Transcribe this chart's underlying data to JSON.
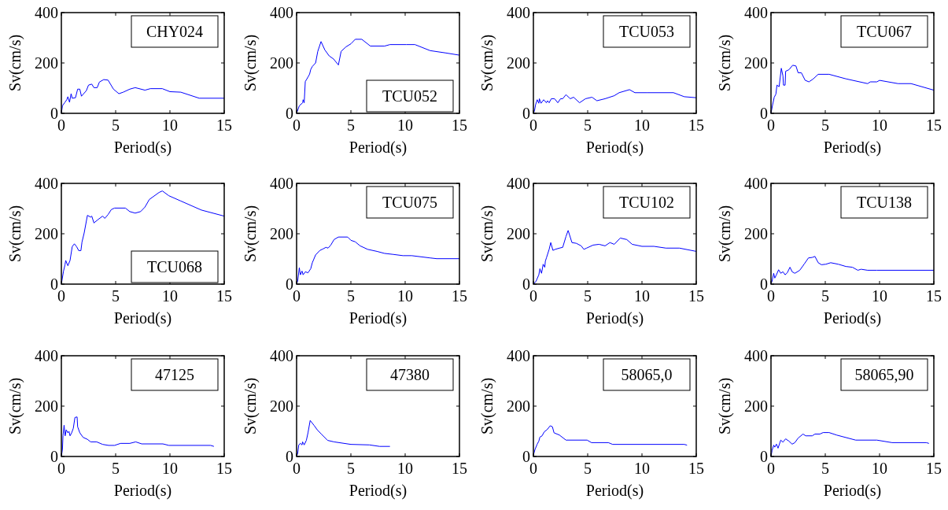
{
  "chart_data": [
    {
      "type": "line",
      "xlabel": "Period(s)",
      "ylabel": "Sv(cm/s)",
      "xlim": [
        0,
        15
      ],
      "ylim": [
        0,
        400
      ],
      "xticks": [
        0,
        5,
        10,
        15
      ],
      "yticks": [
        0,
        200,
        400
      ],
      "legend": "top right",
      "series": [
        {
          "name": "CHY024",
          "color": "#0000ff",
          "x": [
            0,
            0.1,
            0.3,
            0.5,
            0.6,
            0.75,
            0.9,
            1.0,
            1.3,
            1.5,
            1.7,
            1.85,
            2.3,
            2.5,
            2.8,
            3.0,
            3.3,
            3.5,
            3.9,
            4.3,
            4.8,
            5.3,
            5.7,
            6.3,
            6.8,
            7.7,
            8.2,
            9.3,
            10,
            11,
            12.7,
            15
          ],
          "values": [
            0,
            30,
            42,
            54,
            66,
            44,
            78,
            60,
            62,
            96,
            96,
            68,
            90,
            112,
            116,
            102,
            102,
            124,
            134,
            132,
            96,
            78,
            84,
            96,
            102,
            92,
            98,
            98,
            86,
            84,
            60,
            60
          ]
        }
      ]
    },
    {
      "type": "line",
      "xlabel": "Period(s)",
      "ylabel": "Sv(cm/s)",
      "xlim": [
        0,
        15
      ],
      "ylim": [
        0,
        400
      ],
      "xticks": [
        0,
        5,
        10,
        15
      ],
      "yticks": [
        0,
        200,
        400
      ],
      "legend": "bottom right",
      "series": [
        {
          "name": "TCU052",
          "color": "#0000ff",
          "x": [
            0,
            0.25,
            0.56,
            0.6,
            0.7,
            0.8,
            1.05,
            1.2,
            1.3,
            1.45,
            1.75,
            1.95,
            2.25,
            2.6,
            3.0,
            3.4,
            3.85,
            4.1,
            4.55,
            5.0,
            5.4,
            6.0,
            6.8,
            8.1,
            8.6,
            10.1,
            10.9,
            12.3,
            13.7,
            15
          ],
          "values": [
            0,
            30,
            42,
            54,
            42,
            126,
            144,
            156,
            174,
            186,
            200,
            246,
            285,
            252,
            228,
            216,
            192,
            246,
            264,
            276,
            294,
            294,
            267,
            267,
            273,
            273,
            273,
            249,
            240,
            231
          ]
        }
      ]
    },
    {
      "type": "line",
      "xlabel": "Period(s)",
      "ylabel": "Sv(cm/s)",
      "xlim": [
        0,
        15
      ],
      "ylim": [
        0,
        400
      ],
      "xticks": [
        0,
        5,
        10,
        15
      ],
      "yticks": [
        0,
        200,
        400
      ],
      "legend": "top right",
      "series": [
        {
          "name": "TCU053",
          "color": "#0000ff",
          "x": [
            0,
            0.1,
            0.2,
            0.35,
            0.5,
            0.55,
            0.7,
            0.95,
            1.2,
            1.3,
            1.45,
            1.65,
            1.95,
            2.25,
            2.5,
            2.7,
            3.0,
            3.4,
            3.7,
            4.25,
            4.8,
            5.4,
            5.85,
            6.6,
            7.45,
            7.9,
            8.85,
            9.35,
            10.5,
            12.9,
            13.9,
            15
          ],
          "values": [
            0,
            10,
            34,
            54,
            40,
            58,
            40,
            54,
            42,
            50,
            42,
            58,
            58,
            42,
            58,
            58,
            74,
            58,
            64,
            42,
            58,
            64,
            50,
            58,
            70,
            82,
            94,
            82,
            82,
            82,
            66,
            62
          ]
        }
      ]
    },
    {
      "type": "line",
      "xlabel": "Period(s)",
      "ylabel": "Sv(cm/s)",
      "xlim": [
        0,
        15
      ],
      "ylim": [
        0,
        400
      ],
      "xticks": [
        0,
        5,
        10,
        15
      ],
      "yticks": [
        0,
        200,
        400
      ],
      "legend": "top right",
      "series": [
        {
          "name": "TCU067",
          "color": "#0000ff",
          "x": [
            0,
            0.15,
            0.3,
            0.45,
            0.55,
            0.75,
            0.95,
            1.1,
            1.15,
            1.3,
            1.35,
            1.65,
            2.0,
            2.3,
            2.5,
            2.8,
            3.15,
            3.5,
            3.9,
            4.35,
            5.35,
            6.9,
            8.9,
            9.15,
            9.75,
            10.0,
            11.7,
            12.9,
            15
          ],
          "values": [
            0,
            34,
            64,
            76,
            112,
            106,
            179,
            149,
            112,
            112,
            167,
            173,
            191,
            188,
            161,
            161,
            131,
            125,
            137,
            155,
            155,
            137,
            118,
            125,
            125,
            131,
            118,
            118,
            92
          ]
        }
      ]
    },
    {
      "type": "line",
      "xlabel": "Period(s)",
      "ylabel": "Sv(cm/s)",
      "xlim": [
        0,
        15
      ],
      "ylim": [
        0,
        400
      ],
      "xticks": [
        0,
        5,
        10,
        15
      ],
      "yticks": [
        0,
        200,
        400
      ],
      "legend": "bottom right",
      "series": [
        {
          "name": "TCU068",
          "color": "#0000ff",
          "x": [
            0,
            0.2,
            0.33,
            0.4,
            0.6,
            0.8,
            1.0,
            1.2,
            1.4,
            1.6,
            1.8,
            1.9,
            2.1,
            2.4,
            2.7,
            2.8,
            3.0,
            3.4,
            3.8,
            4.0,
            4.3,
            4.6,
            4.9,
            5.9,
            6.3,
            6.8,
            7.3,
            7.7,
            8.1,
            9.0,
            9.3,
            9.9,
            11,
            12.9,
            15
          ],
          "values": [
            0,
            52,
            76,
            94,
            73,
            94,
            149,
            160,
            149,
            133,
            133,
            167,
            203,
            273,
            266,
            270,
            243,
            257,
            270,
            261,
            276,
            296,
            302,
            302,
            288,
            282,
            288,
            306,
            336,
            364,
            370,
            351,
            330,
            294,
            270
          ]
        }
      ]
    },
    {
      "type": "line",
      "xlabel": "Period(s)",
      "ylabel": "Sv(cm/s)",
      "xlim": [
        0,
        15
      ],
      "ylim": [
        0,
        400
      ],
      "xticks": [
        0,
        5,
        10,
        15
      ],
      "yticks": [
        0,
        200,
        400
      ],
      "legend": "top right",
      "series": [
        {
          "name": "TCU075",
          "color": "#0000ff",
          "x": [
            0,
            0.1,
            0.25,
            0.35,
            0.5,
            0.6,
            0.8,
            1.05,
            1.3,
            1.45,
            1.75,
            2.15,
            2.45,
            2.7,
            2.9,
            3.15,
            3.45,
            3.85,
            4.7,
            5.0,
            5.4,
            5.85,
            6.55,
            7.4,
            8.1,
            8.9,
            9.8,
            10.6,
            12.3,
            12.9,
            15
          ],
          "values": [
            0,
            12,
            65,
            37,
            52,
            37,
            49,
            45,
            61,
            85,
            116,
            134,
            140,
            146,
            143,
            155,
            177,
            187,
            187,
            174,
            168,
            152,
            138,
            130,
            122,
            118,
            113,
            113,
            104,
            101,
            101
          ]
        }
      ]
    },
    {
      "type": "line",
      "xlabel": "Period(s)",
      "ylabel": "Sv(cm/s)",
      "xlim": [
        0,
        15
      ],
      "ylim": [
        0,
        400
      ],
      "xticks": [
        0,
        5,
        10,
        15
      ],
      "yticks": [
        0,
        200,
        400
      ],
      "legend": "top right",
      "series": [
        {
          "name": "TCU102",
          "color": "#0000ff",
          "x": [
            0,
            0.25,
            0.5,
            0.6,
            0.75,
            0.9,
            1.05,
            1.1,
            1.2,
            1.45,
            1.6,
            1.8,
            2.0,
            2.4,
            2.7,
            3.0,
            3.2,
            3.55,
            3.95,
            4.4,
            4.65,
            4.9,
            5.5,
            6.05,
            6.6,
            7.05,
            7.45,
            8.0,
            8.6,
            9.1,
            10.0,
            11.1,
            12.2,
            13.45,
            15
          ],
          "values": [
            0,
            12,
            37,
            61,
            43,
            79,
            67,
            91,
            104,
            138,
            165,
            134,
            138,
            143,
            146,
            189,
            213,
            165,
            162,
            152,
            138,
            143,
            155,
            158,
            152,
            165,
            158,
            183,
            177,
            158,
            150,
            150,
            143,
            143,
            130
          ]
        }
      ]
    },
    {
      "type": "line",
      "xlabel": "Period(s)",
      "ylabel": "Sv(cm/s)",
      "xlim": [
        0,
        15
      ],
      "ylim": [
        0,
        400
      ],
      "xticks": [
        0,
        5,
        10,
        15
      ],
      "yticks": [
        0,
        200,
        400
      ],
      "legend": "top right",
      "series": [
        {
          "name": "TCU138",
          "color": "#0000ff",
          "x": [
            0,
            0.1,
            0.25,
            0.35,
            0.5,
            0.7,
            0.9,
            1.1,
            1.3,
            1.5,
            1.75,
            1.95,
            2.2,
            2.65,
            3.05,
            3.45,
            3.8,
            4.05,
            4.35,
            4.65,
            5.05,
            5.5,
            6.2,
            6.9,
            7.5,
            8.0,
            8.3,
            8.9,
            9.75,
            15
          ],
          "values": [
            0,
            12,
            43,
            24,
            37,
            57,
            43,
            49,
            37,
            45,
            67,
            49,
            43,
            55,
            79,
            104,
            106,
            110,
            85,
            77,
            79,
            85,
            79,
            70,
            67,
            55,
            59,
            55,
            55,
            55
          ]
        }
      ]
    },
    {
      "type": "line",
      "xlabel": "Period(s)",
      "ylabel": "Sv(cm/s)",
      "xlim": [
        0,
        15
      ],
      "ylim": [
        0,
        400
      ],
      "xticks": [
        0,
        5,
        10,
        15
      ],
      "yticks": [
        0,
        200,
        400
      ],
      "legend": "top right",
      "series": [
        {
          "name": "47125",
          "color": "#0000ff",
          "x": [
            0,
            0.1,
            0.15,
            0.25,
            0.35,
            0.45,
            0.6,
            0.7,
            0.8,
            0.95,
            1.1,
            1.25,
            1.45,
            1.5,
            1.7,
            2.0,
            2.4,
            2.7,
            3.25,
            3.8,
            4.35,
            4.9,
            5.45,
            6.3,
            6.85,
            7.4,
            9.35,
            9.9,
            13.75,
            14.05
          ],
          "values": [
            0,
            28,
            82,
            124,
            82,
            106,
            94,
            100,
            82,
            94,
            112,
            155,
            157,
            118,
            94,
            76,
            68,
            58,
            58,
            48,
            44,
            44,
            52,
            52,
            58,
            50,
            50,
            44,
            44,
            40
          ]
        }
      ]
    },
    {
      "type": "line",
      "xlabel": "Period(s)",
      "ylabel": "Sv(cm/s)",
      "xlim": [
        0,
        15
      ],
      "ylim": [
        0,
        400
      ],
      "xticks": [
        0,
        5,
        10,
        15
      ],
      "yticks": [
        0,
        200,
        400
      ],
      "legend": "top right",
      "series": [
        {
          "name": "47380",
          "color": "#0000ff",
          "x": [
            0,
            0.1,
            0.2,
            0.35,
            0.5,
            0.55,
            0.7,
            0.9,
            1.05,
            1.25,
            1.6,
            1.9,
            2.3,
            2.85,
            3.45,
            5.0,
            6.7,
            7.65,
            8.6
          ],
          "values": [
            0,
            12,
            46,
            52,
            46,
            58,
            46,
            64,
            94,
            143,
            124,
            106,
            88,
            64,
            58,
            48,
            46,
            40,
            40
          ]
        }
      ]
    },
    {
      "type": "line",
      "xlabel": "Period(s)",
      "ylabel": "Sv(cm/s)",
      "xlim": [
        0,
        15
      ],
      "ylim": [
        0,
        400
      ],
      "xticks": [
        0,
        5,
        10,
        15
      ],
      "yticks": [
        0,
        200,
        400
      ],
      "legend": "top right",
      "series": [
        {
          "name": "58065,0",
          "color": "#0000ff",
          "x": [
            0,
            0.15,
            0.35,
            0.5,
            0.6,
            0.8,
            1.0,
            1.25,
            1.55,
            1.75,
            1.9,
            2.4,
            3.0,
            4.95,
            5.35,
            6.9,
            7.3,
            13.9,
            14.15
          ],
          "values": [
            6,
            28,
            49,
            61,
            77,
            82,
            98,
            106,
            122,
            118,
            94,
            85,
            65,
            65,
            55,
            55,
            48,
            48,
            45
          ]
        }
      ]
    },
    {
      "type": "line",
      "xlabel": "Period(s)",
      "ylabel": "Sv(cm/s)",
      "xlim": [
        0,
        15
      ],
      "ylim": [
        0,
        400
      ],
      "xticks": [
        0,
        5,
        10,
        15
      ],
      "yticks": [
        0,
        200,
        400
      ],
      "legend": "top right",
      "series": [
        {
          "name": "58065,90",
          "color": "#0000ff",
          "x": [
            0,
            0.1,
            0.25,
            0.35,
            0.5,
            0.65,
            0.9,
            1.1,
            1.35,
            1.65,
            1.95,
            2.2,
            2.5,
            2.95,
            3.2,
            3.8,
            4.05,
            4.5,
            4.8,
            5.35,
            6.05,
            7.8,
            9.75,
            11.15,
            14.3,
            14.55
          ],
          "values": [
            0,
            24,
            45,
            37,
            49,
            33,
            65,
            57,
            70,
            61,
            49,
            55,
            73,
            89,
            82,
            82,
            89,
            89,
            95,
            95,
            85,
            65,
            65,
            55,
            55,
            52
          ]
        }
      ]
    }
  ]
}
